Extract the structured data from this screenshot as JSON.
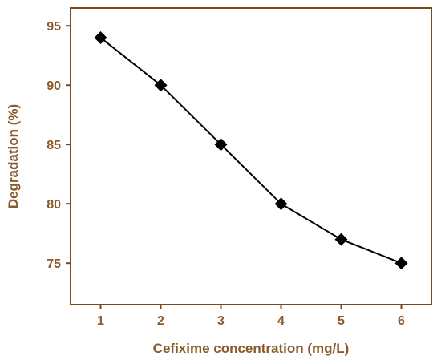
{
  "chart_data": {
    "type": "line",
    "title": "",
    "xlabel": "Cefixime concentration (mg/L)",
    "ylabel": "Degradation (%)",
    "x": [
      1,
      2,
      3,
      4,
      5,
      6
    ],
    "series": [
      {
        "values": [
          94,
          90,
          85,
          80,
          77,
          75
        ]
      }
    ],
    "xlim": [
      0.5,
      6.5
    ],
    "ylim": [
      71.5,
      96.5
    ],
    "xticks": [
      1,
      2,
      3,
      4,
      5,
      6
    ],
    "yticks": [
      75,
      80,
      85,
      90,
      95
    ],
    "marker": "diamond",
    "grid": false,
    "colors": {
      "axis": "#7a4a1e",
      "text": "#8a5a2b",
      "series": "#000000"
    }
  }
}
